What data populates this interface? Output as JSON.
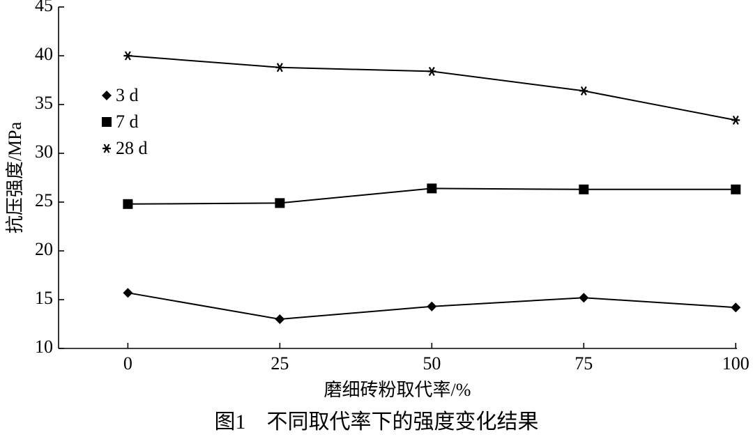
{
  "chart_data": {
    "type": "line",
    "title": "图1　不同取代率下的强度变化结果",
    "x_label": "磨细砖粉取代率/%",
    "y_label": "抗压强度/MPa",
    "x": [
      0,
      25,
      50,
      75,
      100
    ],
    "series": [
      {
        "name": "3 d",
        "color": "#000000",
        "marker": "diamond",
        "values": [
          15.7,
          13.0,
          14.3,
          15.2,
          14.2
        ]
      },
      {
        "name": "7 d",
        "color": "#000000",
        "marker": "square",
        "values": [
          24.8,
          24.9,
          26.4,
          26.3,
          26.3
        ]
      },
      {
        "name": "28 d",
        "color": "#000000",
        "marker": "asterisk",
        "values": [
          40.0,
          38.8,
          38.4,
          36.4,
          33.4
        ]
      }
    ],
    "xlim": [
      -11.4,
      100.2
    ],
    "xticks": [
      0,
      25,
      50,
      75,
      100
    ],
    "ylim": [
      10,
      45
    ],
    "yticks": [
      10,
      15,
      20,
      25,
      30,
      35,
      40,
      45
    ],
    "legend": "left",
    "grid": false
  }
}
